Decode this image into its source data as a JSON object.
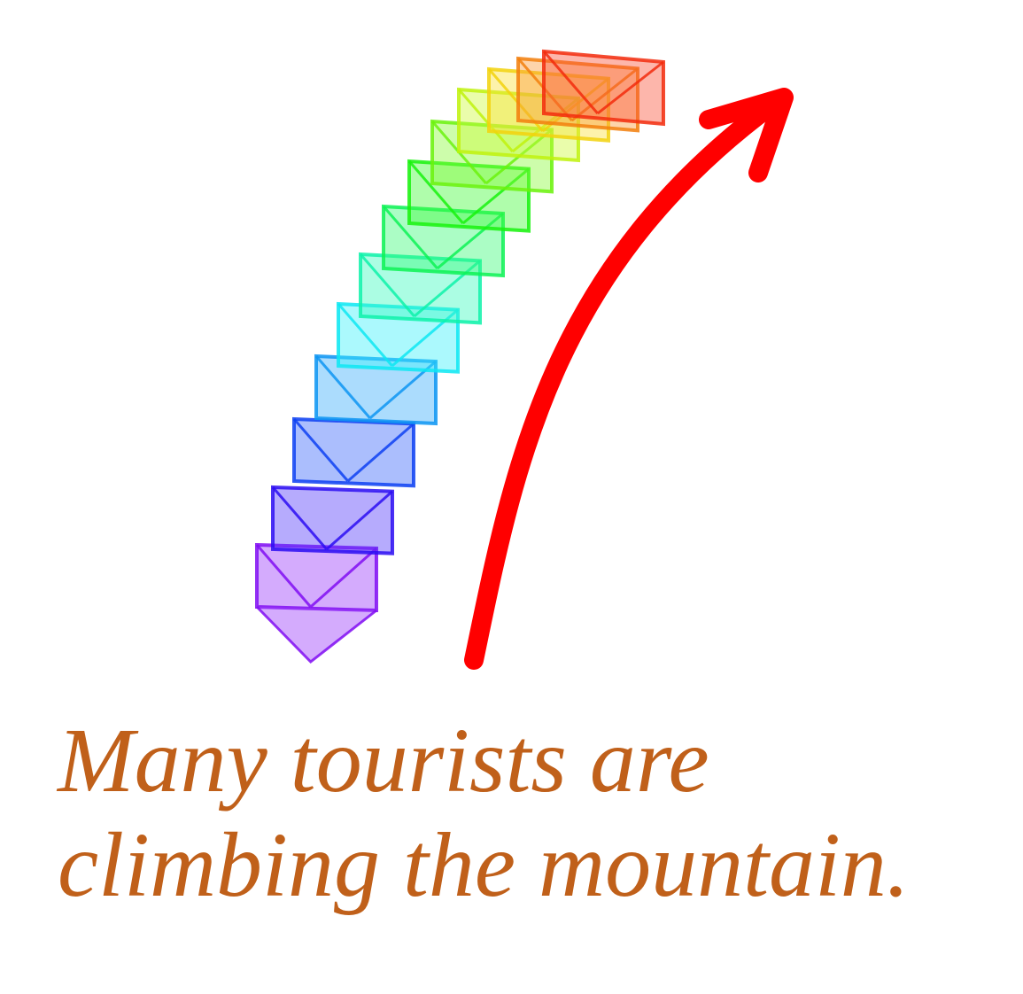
{
  "caption": {
    "line1": "Many tourists are",
    "line2": "climbing the mountain."
  },
  "colors": {
    "caption": "#c0601a",
    "arrow": "#ff0000",
    "gradient_start": "#8a2be2",
    "gradient_end": "#ff4a2a"
  },
  "icons": {
    "trajectory": "camera-frustum-trajectory-icon",
    "arrow": "curved-arrow-icon"
  }
}
